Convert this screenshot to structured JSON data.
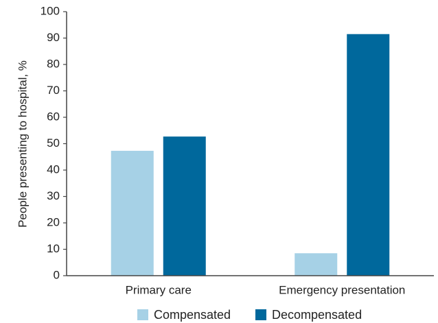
{
  "chart_data": {
    "type": "bar",
    "categories": [
      "Primary care",
      "Emergency presentation"
    ],
    "series": [
      {
        "name": "Compensated",
        "values": [
          47.3,
          8.5
        ],
        "color": "#a6d1e6"
      },
      {
        "name": "Decompensated",
        "values": [
          52.7,
          91.5
        ],
        "color": "#00689c"
      }
    ],
    "ylabel": "People presenting to hospital, %",
    "ylim": [
      0,
      100
    ],
    "yticks": [
      0,
      10,
      20,
      30,
      40,
      50,
      60,
      70,
      80,
      90,
      100
    ],
    "grid": false,
    "legend": "bottom-center"
  }
}
